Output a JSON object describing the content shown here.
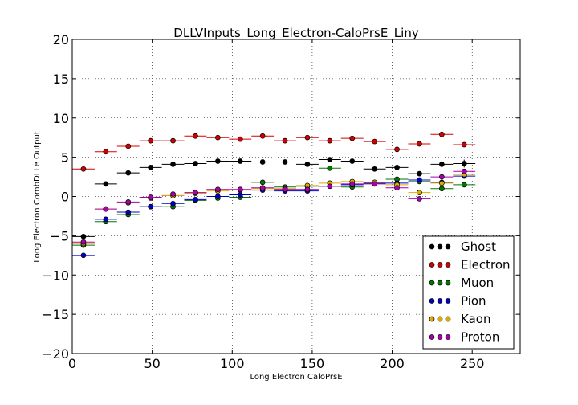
{
  "chart_data": {
    "type": "scatter",
    "title": "DLLVInputs_Long_Electron-CaloPrsE_Liny",
    "xlabel": "Long Electron CaloPrsE",
    "ylabel": "Long Electron CombDLLe Output",
    "xlim": [
      0,
      280
    ],
    "ylim": [
      -20,
      20
    ],
    "xticks": [
      "0",
      "50",
      "100",
      "150",
      "200",
      "250"
    ],
    "yticks": [
      "20",
      "15",
      "10",
      "5",
      "0",
      "−5",
      "−10",
      "−15",
      "−20"
    ],
    "grid": true,
    "legend_position": "lower-right",
    "x": [
      7,
      21,
      35,
      49,
      63,
      77,
      91,
      105,
      119,
      133,
      147,
      161,
      175,
      189,
      203,
      217,
      231,
      245
    ],
    "bin_halfwidth": 7,
    "series": [
      {
        "name": "Ghost",
        "color": "#000000",
        "values": [
          -5.1,
          1.6,
          3.0,
          3.7,
          4.1,
          4.2,
          4.5,
          4.5,
          4.4,
          4.4,
          4.1,
          4.7,
          4.5,
          3.5,
          3.7,
          2.9,
          4.1,
          4.2
        ],
        "yerr": [
          0.2,
          0.1,
          0.1,
          0.1,
          0.1,
          0.1,
          0.1,
          0.1,
          0.1,
          0.1,
          0.1,
          0.2,
          0.2,
          0.2,
          0.2,
          0.3,
          0.4,
          0.5
        ]
      },
      {
        "name": "Electron",
        "color": "#d40000",
        "values": [
          3.5,
          5.7,
          6.4,
          7.1,
          7.1,
          7.7,
          7.5,
          7.3,
          7.7,
          7.1,
          7.5,
          7.1,
          7.4,
          7.0,
          6.0,
          6.7,
          7.9,
          6.6
        ],
        "yerr": [
          0.1,
          0.1,
          0.1,
          0.1,
          0.1,
          0.1,
          0.1,
          0.1,
          0.1,
          0.1,
          0.1,
          0.1,
          0.1,
          0.1,
          0.2,
          0.2,
          0.2,
          0.2
        ]
      },
      {
        "name": "Muon",
        "color": "#007700",
        "values": [
          -6.2,
          -3.2,
          -2.3,
          -1.3,
          -1.3,
          -0.5,
          -0.2,
          -0.1,
          1.8,
          1.2,
          1.3,
          3.6,
          1.2,
          1.7,
          2.2,
          1.9,
          1.0,
          1.5
        ],
        "yerr": [
          0.1,
          0.1,
          0.1,
          0.1,
          0.1,
          0.1,
          0.1,
          0.1,
          0.2,
          0.1,
          0.1,
          0.2,
          0.1,
          0.1,
          0.2,
          0.2,
          0.2,
          0.2
        ]
      },
      {
        "name": "Pion",
        "color": "#0000cc",
        "values": [
          -7.5,
          -2.9,
          -2.0,
          -1.3,
          -0.9,
          -0.4,
          0.0,
          0.2,
          0.8,
          0.7,
          0.7,
          1.3,
          1.5,
          1.7,
          1.7,
          2.1,
          1.8,
          2.6
        ],
        "yerr": [
          0.1,
          0.1,
          0.1,
          0.1,
          0.1,
          0.1,
          0.1,
          0.1,
          0.1,
          0.1,
          0.1,
          0.1,
          0.1,
          0.1,
          0.1,
          0.1,
          0.2,
          0.2
        ]
      },
      {
        "name": "Kaon",
        "color": "#ddaa00",
        "values": [
          -6.0,
          -1.6,
          -0.8,
          -0.2,
          0.1,
          0.4,
          0.7,
          0.8,
          1.0,
          1.0,
          1.4,
          1.7,
          1.9,
          1.8,
          1.5,
          0.5,
          1.7,
          2.8
        ],
        "yerr": [
          0.1,
          0.1,
          0.1,
          0.1,
          0.1,
          0.1,
          0.1,
          0.1,
          0.1,
          0.1,
          0.1,
          0.1,
          0.1,
          0.1,
          0.1,
          0.1,
          0.2,
          0.2
        ]
      },
      {
        "name": "Proton",
        "color": "#aa00aa",
        "values": [
          -5.8,
          -1.6,
          -0.7,
          -0.1,
          0.3,
          0.5,
          0.9,
          0.9,
          1.1,
          0.9,
          0.9,
          1.3,
          1.6,
          1.6,
          1.1,
          -0.3,
          2.5,
          3.2
        ],
        "yerr": [
          0.1,
          0.1,
          0.1,
          0.1,
          0.1,
          0.1,
          0.1,
          0.1,
          0.1,
          0.1,
          0.1,
          0.1,
          0.1,
          0.1,
          0.1,
          0.1,
          0.2,
          0.2
        ]
      }
    ]
  }
}
